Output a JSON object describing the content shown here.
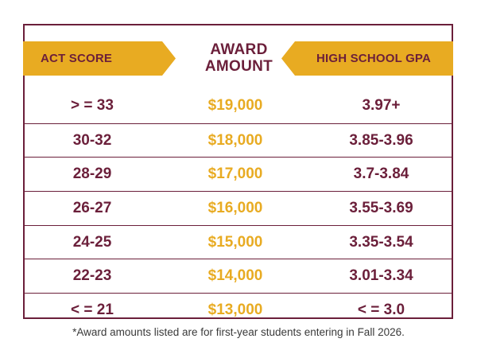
{
  "colors": {
    "maroon": "#6b1f3a",
    "gold": "#e8ab22",
    "text_gray": "#3a3a3a"
  },
  "header": {
    "act_label": "ACT SCORE",
    "award_label_line1": "AWARD",
    "award_label_line2": "AMOUNT",
    "gpa_label": "HIGH SCHOOL GPA"
  },
  "rows": [
    {
      "act": "> = 33",
      "award": "$19,000",
      "gpa": "3.97+"
    },
    {
      "act": "30-32",
      "award": "$18,000",
      "gpa": "3.85-3.96"
    },
    {
      "act": "28-29",
      "award": "$17,000",
      "gpa": "3.7-3.84"
    },
    {
      "act": "26-27",
      "award": "$16,000",
      "gpa": "3.55-3.69"
    },
    {
      "act": "24-25",
      "award": "$15,000",
      "gpa": "3.35-3.54"
    },
    {
      "act": "22-23",
      "award": "$14,000",
      "gpa": "3.01-3.34"
    },
    {
      "act": "< = 21",
      "award": "$13,000",
      "gpa": "< = 3.0"
    }
  ],
  "footnote": "*Award amounts listed are for first-year students entering in Fall 2026."
}
